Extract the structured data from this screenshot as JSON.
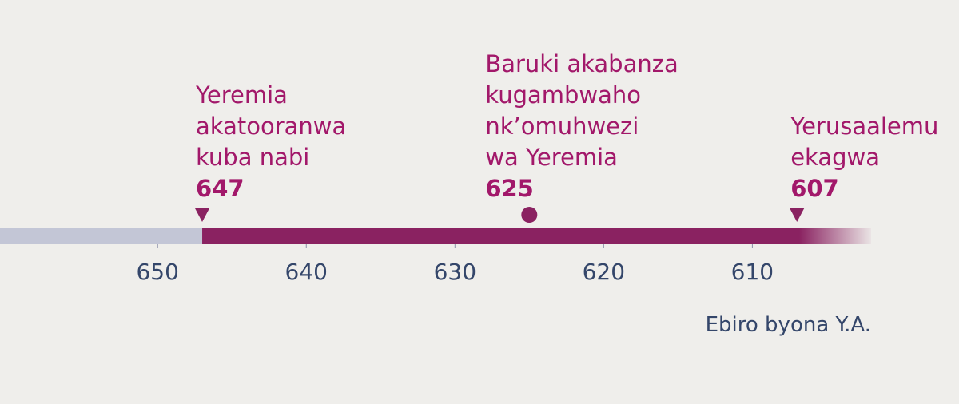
{
  "chart_data": {
    "type": "timeline",
    "xlim": [
      660.6,
      596.1
    ],
    "xticks": [
      650,
      640,
      630,
      620,
      610
    ],
    "x_label": "Ebiro byona Y.A.",
    "color": "#8a2261",
    "before_color": "#c3c6d6",
    "events": [
      {
        "lines": [
          "Yeremia",
          "akatooranwa",
          "kuba nabi"
        ],
        "year": 647,
        "marker": "triangle"
      },
      {
        "lines": [
          "Baruki akabanza",
          "kugambwaho",
          "nk’omuhwezi",
          "wa Yeremia"
        ],
        "year": 625,
        "marker": "circle"
      },
      {
        "lines": [
          "Yerusaalemu",
          "ekagwa"
        ],
        "year": 607,
        "marker": "triangle"
      }
    ]
  }
}
